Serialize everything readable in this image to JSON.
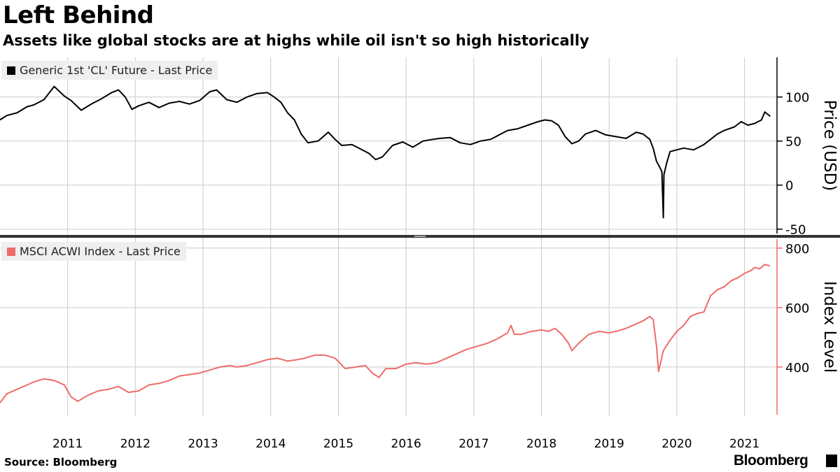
{
  "header": {
    "title": "Left Behind",
    "subtitle": "Assets like global stocks are at highs while oil isn't so high historically"
  },
  "footer": {
    "source": "Source: Bloomberg",
    "brand": "Bloomberg"
  },
  "colors": {
    "oil": "#000000",
    "msci": "#f06b6b",
    "grid": "#cccccc",
    "divider": "#333333"
  },
  "chart_data": [
    {
      "type": "line",
      "legend": "Generic 1st 'CL' Future - Last Price",
      "ylabel": "Price (USD)",
      "ylim": [
        -55,
        145
      ],
      "yticks": [
        100,
        50,
        0,
        -50
      ],
      "grid": true,
      "legend_placement": "top-left",
      "series": [
        {
          "name": "Generic 1st 'CL' Future - Last Price",
          "x": [
            2010.5,
            2010.6,
            2010.75,
            2010.9,
            2011.0,
            2011.15,
            2011.3,
            2011.45,
            2011.55,
            2011.7,
            2011.85,
            2012.0,
            2012.15,
            2012.25,
            2012.35,
            2012.45,
            2012.55,
            2012.7,
            2012.85,
            2013.0,
            2013.15,
            2013.3,
            2013.45,
            2013.6,
            2013.7,
            2013.85,
            2014.0,
            2014.15,
            2014.3,
            2014.45,
            2014.55,
            2014.65,
            2014.75,
            2014.85,
            2014.95,
            2015.05,
            2015.2,
            2015.35,
            2015.45,
            2015.55,
            2015.7,
            2015.85,
            2015.95,
            2016.05,
            2016.15,
            2016.3,
            2016.45,
            2016.6,
            2016.75,
            2016.9,
            2017.0,
            2017.15,
            2017.3,
            2017.45,
            2017.6,
            2017.75,
            2017.9,
            2018.0,
            2018.15,
            2018.3,
            2018.45,
            2018.55,
            2018.65,
            2018.75,
            2018.85,
            2018.95,
            2019.05,
            2019.15,
            2019.3,
            2019.45,
            2019.6,
            2019.75,
            2019.9,
            2020.0,
            2020.1,
            2020.15,
            2020.2,
            2020.25,
            2020.28,
            2020.3,
            2020.31,
            2020.35,
            2020.4,
            2020.5,
            2020.6,
            2020.75,
            2020.9,
            2021.0,
            2021.1,
            2021.2,
            2021.35,
            2021.45,
            2021.55,
            2021.65,
            2021.75,
            2021.8,
            2021.88
          ],
          "values": [
            74,
            79,
            82,
            89,
            91,
            97,
            112,
            101,
            96,
            85,
            92,
            98,
            105,
            108,
            100,
            86,
            90,
            94,
            88,
            93,
            95,
            92,
            96,
            106,
            108,
            97,
            94,
            100,
            104,
            105,
            100,
            94,
            82,
            74,
            58,
            48,
            50,
            60,
            52,
            45,
            46,
            40,
            36,
            29,
            32,
            45,
            49,
            43,
            50,
            52,
            53,
            54,
            48,
            46,
            50,
            52,
            58,
            62,
            64,
            68,
            72,
            74,
            73,
            68,
            55,
            47,
            50,
            58,
            62,
            57,
            55,
            53,
            60,
            58,
            52,
            42,
            27,
            20,
            15,
            -37,
            12,
            25,
            38,
            40,
            42,
            40,
            46,
            52,
            58,
            62,
            66,
            72,
            68,
            70,
            74,
            83,
            78
          ]
        }
      ]
    },
    {
      "type": "line",
      "legend": "MSCI ACWI Index - Last Price",
      "ylabel": "Index Level",
      "ylim": [
        240,
        830
      ],
      "yticks": [
        800,
        600,
        400
      ],
      "grid": true,
      "legend_placement": "top-left",
      "x_tick_labels": [
        "2011",
        "2012",
        "2013",
        "2014",
        "2015",
        "2016",
        "2017",
        "2018",
        "2019",
        "2020",
        "2021"
      ],
      "x_ticks": [
        2011,
        2012,
        2013,
        2014,
        2015,
        2016,
        2017,
        2018,
        2019,
        2020,
        2021
      ],
      "series": [
        {
          "name": "MSCI ACWI Index - Last Price",
          "x": [
            2010.5,
            2010.6,
            2010.75,
            2010.9,
            2011.0,
            2011.15,
            2011.3,
            2011.45,
            2011.55,
            2011.65,
            2011.8,
            2011.95,
            2012.1,
            2012.25,
            2012.4,
            2012.55,
            2012.7,
            2012.85,
            2013.0,
            2013.15,
            2013.3,
            2013.45,
            2013.6,
            2013.75,
            2013.9,
            2014.0,
            2014.15,
            2014.3,
            2014.45,
            2014.6,
            2014.75,
            2014.9,
            2015.0,
            2015.15,
            2015.3,
            2015.45,
            2015.6,
            2015.75,
            2015.9,
            2016.0,
            2016.1,
            2016.2,
            2016.35,
            2016.5,
            2016.65,
            2016.8,
            2016.95,
            2017.1,
            2017.25,
            2017.4,
            2017.55,
            2017.7,
            2017.85,
            2018.0,
            2018.05,
            2018.1,
            2018.2,
            2018.35,
            2018.5,
            2018.6,
            2018.7,
            2018.8,
            2018.9,
            2018.95,
            2019.05,
            2019.2,
            2019.35,
            2019.5,
            2019.6,
            2019.75,
            2019.9,
            2020.0,
            2020.1,
            2020.15,
            2020.2,
            2020.23,
            2020.3,
            2020.4,
            2020.5,
            2020.6,
            2020.7,
            2020.8,
            2020.9,
            2021.0,
            2021.1,
            2021.2,
            2021.3,
            2021.4,
            2021.5,
            2021.6,
            2021.65,
            2021.72,
            2021.8,
            2021.88
          ],
          "values": [
            280,
            310,
            325,
            340,
            350,
            360,
            355,
            340,
            300,
            285,
            305,
            320,
            325,
            335,
            315,
            320,
            340,
            345,
            355,
            370,
            375,
            380,
            390,
            400,
            405,
            400,
            405,
            415,
            425,
            430,
            420,
            425,
            430,
            440,
            440,
            430,
            395,
            400,
            405,
            380,
            365,
            395,
            395,
            410,
            415,
            410,
            415,
            430,
            445,
            460,
            470,
            480,
            495,
            515,
            540,
            510,
            510,
            520,
            525,
            520,
            530,
            510,
            480,
            455,
            480,
            510,
            520,
            515,
            520,
            530,
            545,
            555,
            570,
            560,
            470,
            385,
            455,
            490,
            520,
            540,
            570,
            580,
            585,
            640,
            660,
            670,
            690,
            700,
            715,
            725,
            735,
            730,
            745,
            740
          ]
        }
      ]
    }
  ]
}
